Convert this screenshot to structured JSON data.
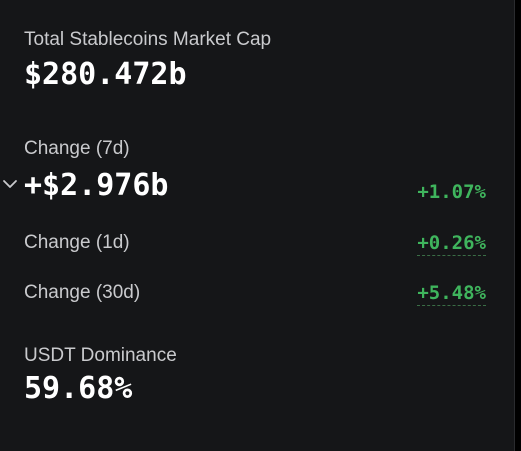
{
  "market_cap": {
    "label": "Total Stablecoins Market Cap",
    "value": "$280.472b"
  },
  "change_7d": {
    "label": "Change (7d)",
    "value": "+$2.976b",
    "percent": "+1.07%"
  },
  "change_1d": {
    "label": "Change (1d)",
    "percent": "+0.26%"
  },
  "change_30d": {
    "label": "Change (30d)",
    "percent": "+5.48%"
  },
  "usdt_dominance": {
    "label": "USDT Dominance",
    "value": "59.68%"
  },
  "colors": {
    "background": "#151618",
    "positive": "#3fb55d",
    "label": "#c9cacd",
    "value": "#ffffff"
  },
  "icons": {
    "expand": "chevron-down-icon"
  }
}
